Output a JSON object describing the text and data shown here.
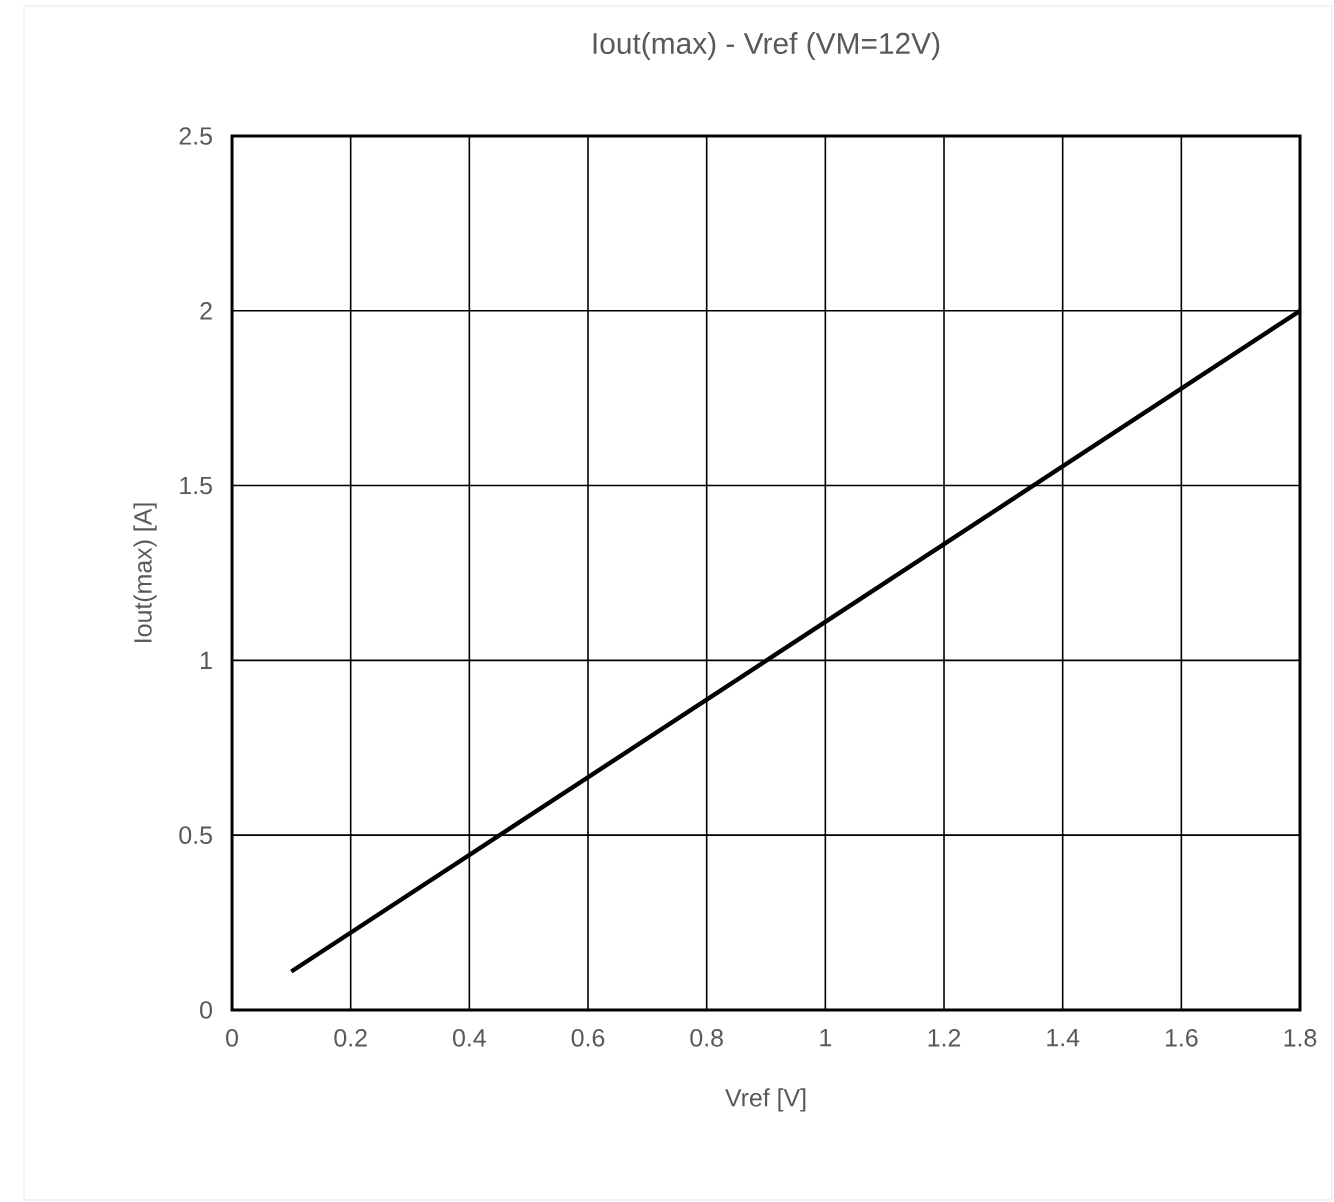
{
  "chart_data": {
    "type": "line",
    "title": "Iout(max) - Vref  (VM=12V)",
    "xlabel": "Vref [V]",
    "ylabel": "Iout(max) [A]",
    "x": [
      0.1,
      1.0,
      1.8
    ],
    "series": [
      {
        "color": "#000000",
        "values": [
          0.11,
          1.11,
          2.0
        ]
      }
    ],
    "xlim": [
      0,
      1.8
    ],
    "ylim": [
      0,
      2.5
    ],
    "xticks": [
      0,
      0.2,
      0.4,
      0.6,
      0.8,
      1,
      1.2,
      1.4,
      1.6,
      1.8
    ],
    "yticks": [
      0,
      0.5,
      1,
      1.5,
      2,
      2.5
    ],
    "grid": true,
    "line_style": "solid"
  }
}
